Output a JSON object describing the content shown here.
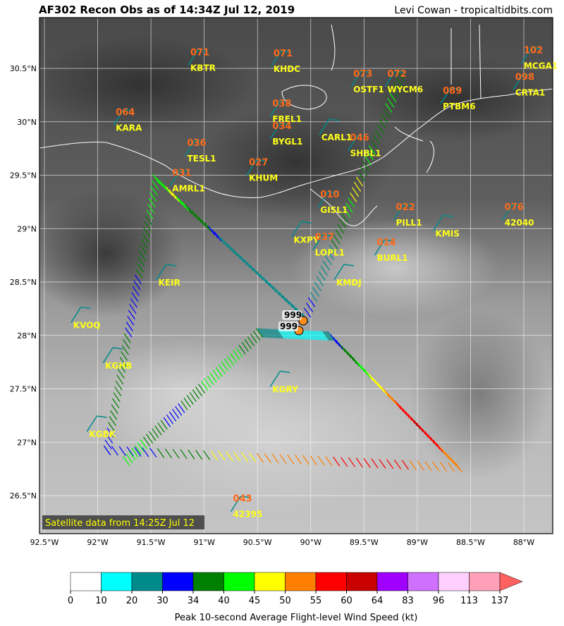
{
  "header": {
    "title": "AF302 Recon Obs as of 14:34Z Jul 12, 2019",
    "credit": "Levi Cowan - tropicaltidbits.com"
  },
  "map": {
    "lon_range": [
      -92.5,
      -87.75
    ],
    "lat_range": [
      26.15,
      29.95
    ],
    "lon_ticks": [
      "92.5°W",
      "92°W",
      "91.5°W",
      "91°W",
      "90.5°W",
      "90°W",
      "89.5°W",
      "89°W",
      "88.5°W",
      "88°W"
    ],
    "lat_ticks": [
      "26.5°N",
      "27°N",
      "27.5°N",
      "28°N",
      "28.5°N",
      "29°N",
      "29.5°N",
      "30°N",
      "30.5°N"
    ],
    "satellite_note": "Satellite data from 14:25Z Jul 12",
    "center_pressures": [
      "999",
      "999"
    ]
  },
  "stations": [
    {
      "id": "KBTR",
      "value": "071",
      "lon": -91.15,
      "lat": 30.53
    },
    {
      "id": "KHDC",
      "value": "071",
      "lon": -90.37,
      "lat": 30.52
    },
    {
      "id": "KARA",
      "value": "064",
      "lon": -91.85,
      "lat": 29.97
    },
    {
      "id": "FREL1",
      "value": "038",
      "lon": -90.38,
      "lat": 30.05
    },
    {
      "id": "OSTF1",
      "value": "073",
      "lon": -89.62,
      "lat": 30.33
    },
    {
      "id": "WYCM6",
      "value": "072",
      "lon": -89.3,
      "lat": 30.33
    },
    {
      "id": "CARL1",
      "value": "",
      "lon": -89.92,
      "lat": 29.88
    },
    {
      "id": "SHBL1",
      "value": "046",
      "lon": -89.65,
      "lat": 29.73
    },
    {
      "id": "PTBM6",
      "value": "089",
      "lon": -88.78,
      "lat": 30.17
    },
    {
      "id": "CRTA1",
      "value": "098",
      "lon": -88.1,
      "lat": 30.3
    },
    {
      "id": "MCGA1",
      "value": "102",
      "lon": -88.02,
      "lat": 30.55
    },
    {
      "id": "TESL1",
      "value": "036",
      "lon": -91.18,
      "lat": 29.68
    },
    {
      "id": "BYGL1",
      "value": "034",
      "lon": -90.38,
      "lat": 29.84
    },
    {
      "id": "KHUM",
      "value": "027",
      "lon": -90.6,
      "lat": 29.5
    },
    {
      "id": "AMRL1",
      "value": "031",
      "lon": -91.32,
      "lat": 29.4
    },
    {
      "id": "GISL1",
      "value": "010",
      "lon": -89.93,
      "lat": 29.2
    },
    {
      "id": "PILL1",
      "value": "022",
      "lon": -89.22,
      "lat": 29.08
    },
    {
      "id": "KMIS",
      "value": "",
      "lon": -88.85,
      "lat": 28.98
    },
    {
      "id": "42040",
      "value": "076",
      "lon": -88.2,
      "lat": 29.08
    },
    {
      "id": "KXPY",
      "value": "",
      "lon": -90.18,
      "lat": 28.92
    },
    {
      "id": "LOPL1",
      "value": "037",
      "lon": -89.98,
      "lat": 28.8
    },
    {
      "id": "BURL1",
      "value": "014",
      "lon": -89.4,
      "lat": 28.75
    },
    {
      "id": "KMDJ",
      "value": "",
      "lon": -89.78,
      "lat": 28.52
    },
    {
      "id": "KEIR",
      "value": "",
      "lon": -91.45,
      "lat": 28.52
    },
    {
      "id": "KVOQ",
      "value": "",
      "lon": -92.25,
      "lat": 28.12
    },
    {
      "id": "KGHB",
      "value": "",
      "lon": -91.95,
      "lat": 27.74
    },
    {
      "id": "KGRY",
      "value": "",
      "lon": -90.38,
      "lat": 27.52
    },
    {
      "id": "KGBK",
      "value": "",
      "lon": -92.1,
      "lat": 27.1
    },
    {
      "id": "42395",
      "value": "043",
      "lon": -90.75,
      "lat": 26.35
    }
  ],
  "colorbar": {
    "title": "Peak 10-second Average Flight-level Wind Speed (kt)",
    "ticks": [
      "0",
      "10",
      "20",
      "30",
      "34",
      "40",
      "45",
      "50",
      "55",
      "60",
      "64",
      "83",
      "96",
      "113",
      "137"
    ],
    "colors": [
      "#ffffff",
      "#00ffff",
      "#008b8b",
      "#0000ff",
      "#008000",
      "#00ff00",
      "#ffff00",
      "#ff8000",
      "#ff0000",
      "#c80000",
      "#a000ff",
      "#d070ff",
      "#ffd0ff",
      "#ffa0b8",
      "#ff6060"
    ]
  },
  "flight_track": {
    "legs": [
      {
        "from": [
          -90.02,
          28.12
        ],
        "to": [
          -89.12,
          30.38
        ]
      },
      {
        "from": [
          -90.02,
          28.12
        ],
        "to": [
          -91.42,
          29.42
        ]
      },
      {
        "from": [
          -91.42,
          29.42
        ],
        "to": [
          -91.88,
          26.88
        ]
      },
      {
        "from": [
          -91.88,
          26.88
        ],
        "to": [
          -88.58,
          26.72
        ]
      },
      {
        "from": [
          -88.58,
          26.72
        ],
        "to": [
          -89.78,
          27.95
        ]
      },
      {
        "from": [
          -89.78,
          27.95
        ],
        "to": [
          -90.45,
          27.98
        ]
      },
      {
        "from": [
          -90.45,
          27.98
        ],
        "to": [
          -91.7,
          26.78
        ]
      }
    ]
  }
}
